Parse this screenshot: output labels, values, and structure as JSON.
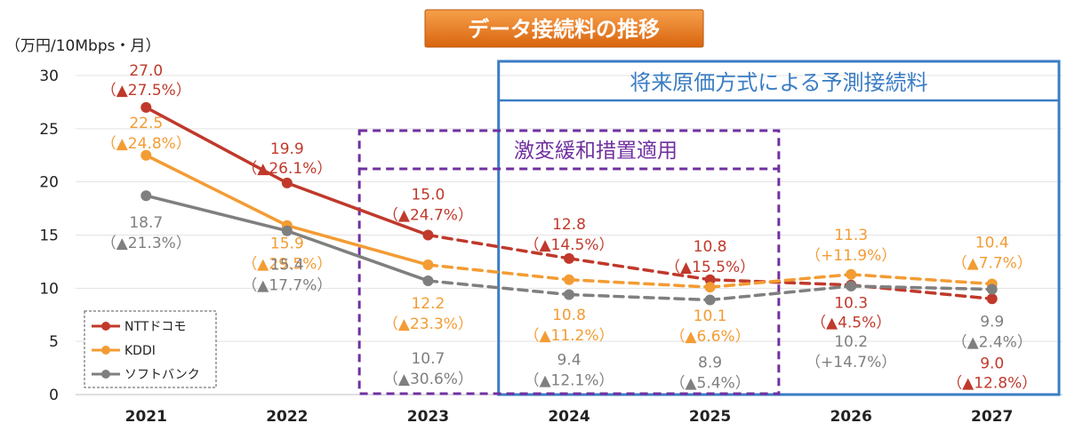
{
  "title": "データ接続料の推移",
  "y_unit": "（万円/10Mbps・月）",
  "annotations": {
    "forecast_label": "将来原価方式による予測接続料",
    "mitigation_label": "激変緩和措置適用"
  },
  "colors": {
    "docomo": "#c0392b",
    "kddi": "#f39c33",
    "softbank": "#7f7f7f",
    "forecast_box": "#3b7dc4",
    "mitigation_box": "#7030a0",
    "title_bg": "#e8741e"
  },
  "chart_data": {
    "type": "line",
    "title": "データ接続料の推移",
    "ylabel": "（万円/10Mbps・月）",
    "xlabel": "",
    "categories": [
      "2021",
      "2022",
      "2023",
      "2024",
      "2025",
      "2026",
      "2027"
    ],
    "ylim": [
      0,
      30
    ],
    "yticks": [
      0,
      5,
      10,
      15,
      20,
      25,
      30
    ],
    "grid": true,
    "legend_position": "bottom-left",
    "actual_through": "2023",
    "series": [
      {
        "key": "docomo",
        "name": "NTTドコモ",
        "values": [
          27.0,
          19.9,
          15.0,
          12.8,
          10.8,
          10.3,
          9.0
        ],
        "value_labels": [
          "27.0",
          "19.9",
          "15.0",
          "12.8",
          "10.8",
          "10.3",
          "9.0"
        ],
        "change_labels": [
          "（▲27.5%）",
          "（▲26.1%）",
          "（▲24.7%）",
          "（▲14.5%）",
          "（▲15.5%）",
          "（▲4.5%）",
          "（▲12.8%）"
        ]
      },
      {
        "key": "kddi",
        "name": "KDDI",
        "values": [
          22.5,
          15.9,
          12.2,
          10.8,
          10.1,
          11.3,
          10.4
        ],
        "value_labels": [
          "22.5",
          "15.9",
          "12.2",
          "10.8",
          "10.1",
          "11.3",
          "10.4"
        ],
        "change_labels": [
          "（▲24.8%）",
          "（▲29.5%）",
          "（▲23.3%）",
          "（▲11.2%）",
          "（▲6.6%）",
          "（+11.9%）",
          "（▲7.7%）"
        ]
      },
      {
        "key": "softbank",
        "name": "ソフトバンク",
        "values": [
          18.7,
          15.4,
          10.7,
          9.4,
          8.9,
          10.2,
          9.9
        ],
        "value_labels": [
          "18.7",
          "15.4",
          "10.7",
          "9.4",
          "8.9",
          "10.2",
          "9.9"
        ],
        "change_labels": [
          "（▲21.3%）",
          "（▲17.7%）",
          "（▲30.6%）",
          "（▲12.1%）",
          "（▲5.4%）",
          "（+14.7%）",
          "（▲2.4%）"
        ]
      }
    ]
  }
}
